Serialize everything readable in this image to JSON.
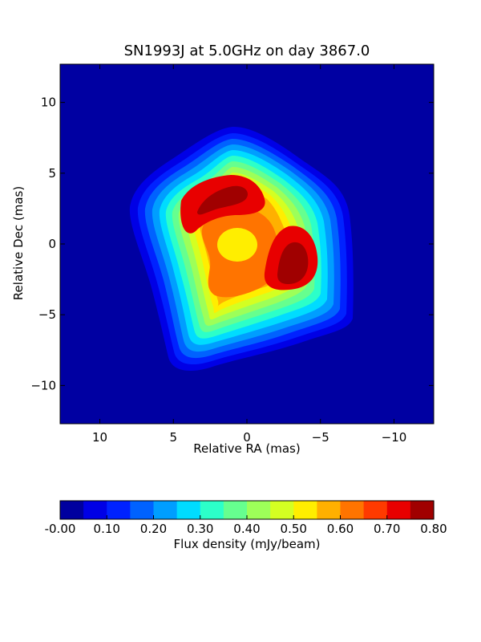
{
  "chart_data": {
    "type": "heatmap",
    "title": "SN1993J at 5.0GHz on day 3867.0",
    "xlabel": "Relative RA (mas)",
    "ylabel": "Relative Dec (mas)",
    "xlim": [
      12.7,
      -12.7
    ],
    "ylim": [
      -12.7,
      12.7
    ],
    "x_ticks": [
      10,
      5,
      0,
      -5,
      -10
    ],
    "x_tick_labels": [
      "10",
      "5",
      "0",
      "−5",
      "−10"
    ],
    "y_ticks": [
      10,
      5,
      0,
      -5,
      -10
    ],
    "y_tick_labels": [
      "10",
      "5",
      "0",
      "−5",
      "−10"
    ],
    "colorbar": {
      "label": "Flux density (mJy/beam)",
      "orientation": "horizontal",
      "range": [
        0.0,
        0.8
      ],
      "ticks": [
        0.0,
        0.1,
        0.2,
        0.3,
        0.4,
        0.5,
        0.6,
        0.7,
        0.8
      ],
      "tick_labels": [
        "-0.00",
        "0.10",
        "0.20",
        "0.30",
        "0.40",
        "0.50",
        "0.60",
        "0.70",
        "0.80"
      ],
      "levels": 16,
      "colors": [
        "#00009f",
        "#0000e6",
        "#0022ff",
        "#0062ff",
        "#009eff",
        "#00dcff",
        "#2cffc9",
        "#66ff8f",
        "#9dff59",
        "#d4ff22",
        "#ffee00",
        "#ffb000",
        "#ff7400",
        "#ff3a00",
        "#e80000",
        "#a00000"
      ]
    },
    "background_color": "#0000a2",
    "features": [
      {
        "ra": -0.5,
        "dec": -0.2,
        "peak": 0.55
      },
      {
        "ra": 2.4,
        "dec": 3.2,
        "peak": 0.78
      },
      {
        "ra": -3.7,
        "dec": -1.8,
        "peak": 0.78
      }
    ]
  }
}
